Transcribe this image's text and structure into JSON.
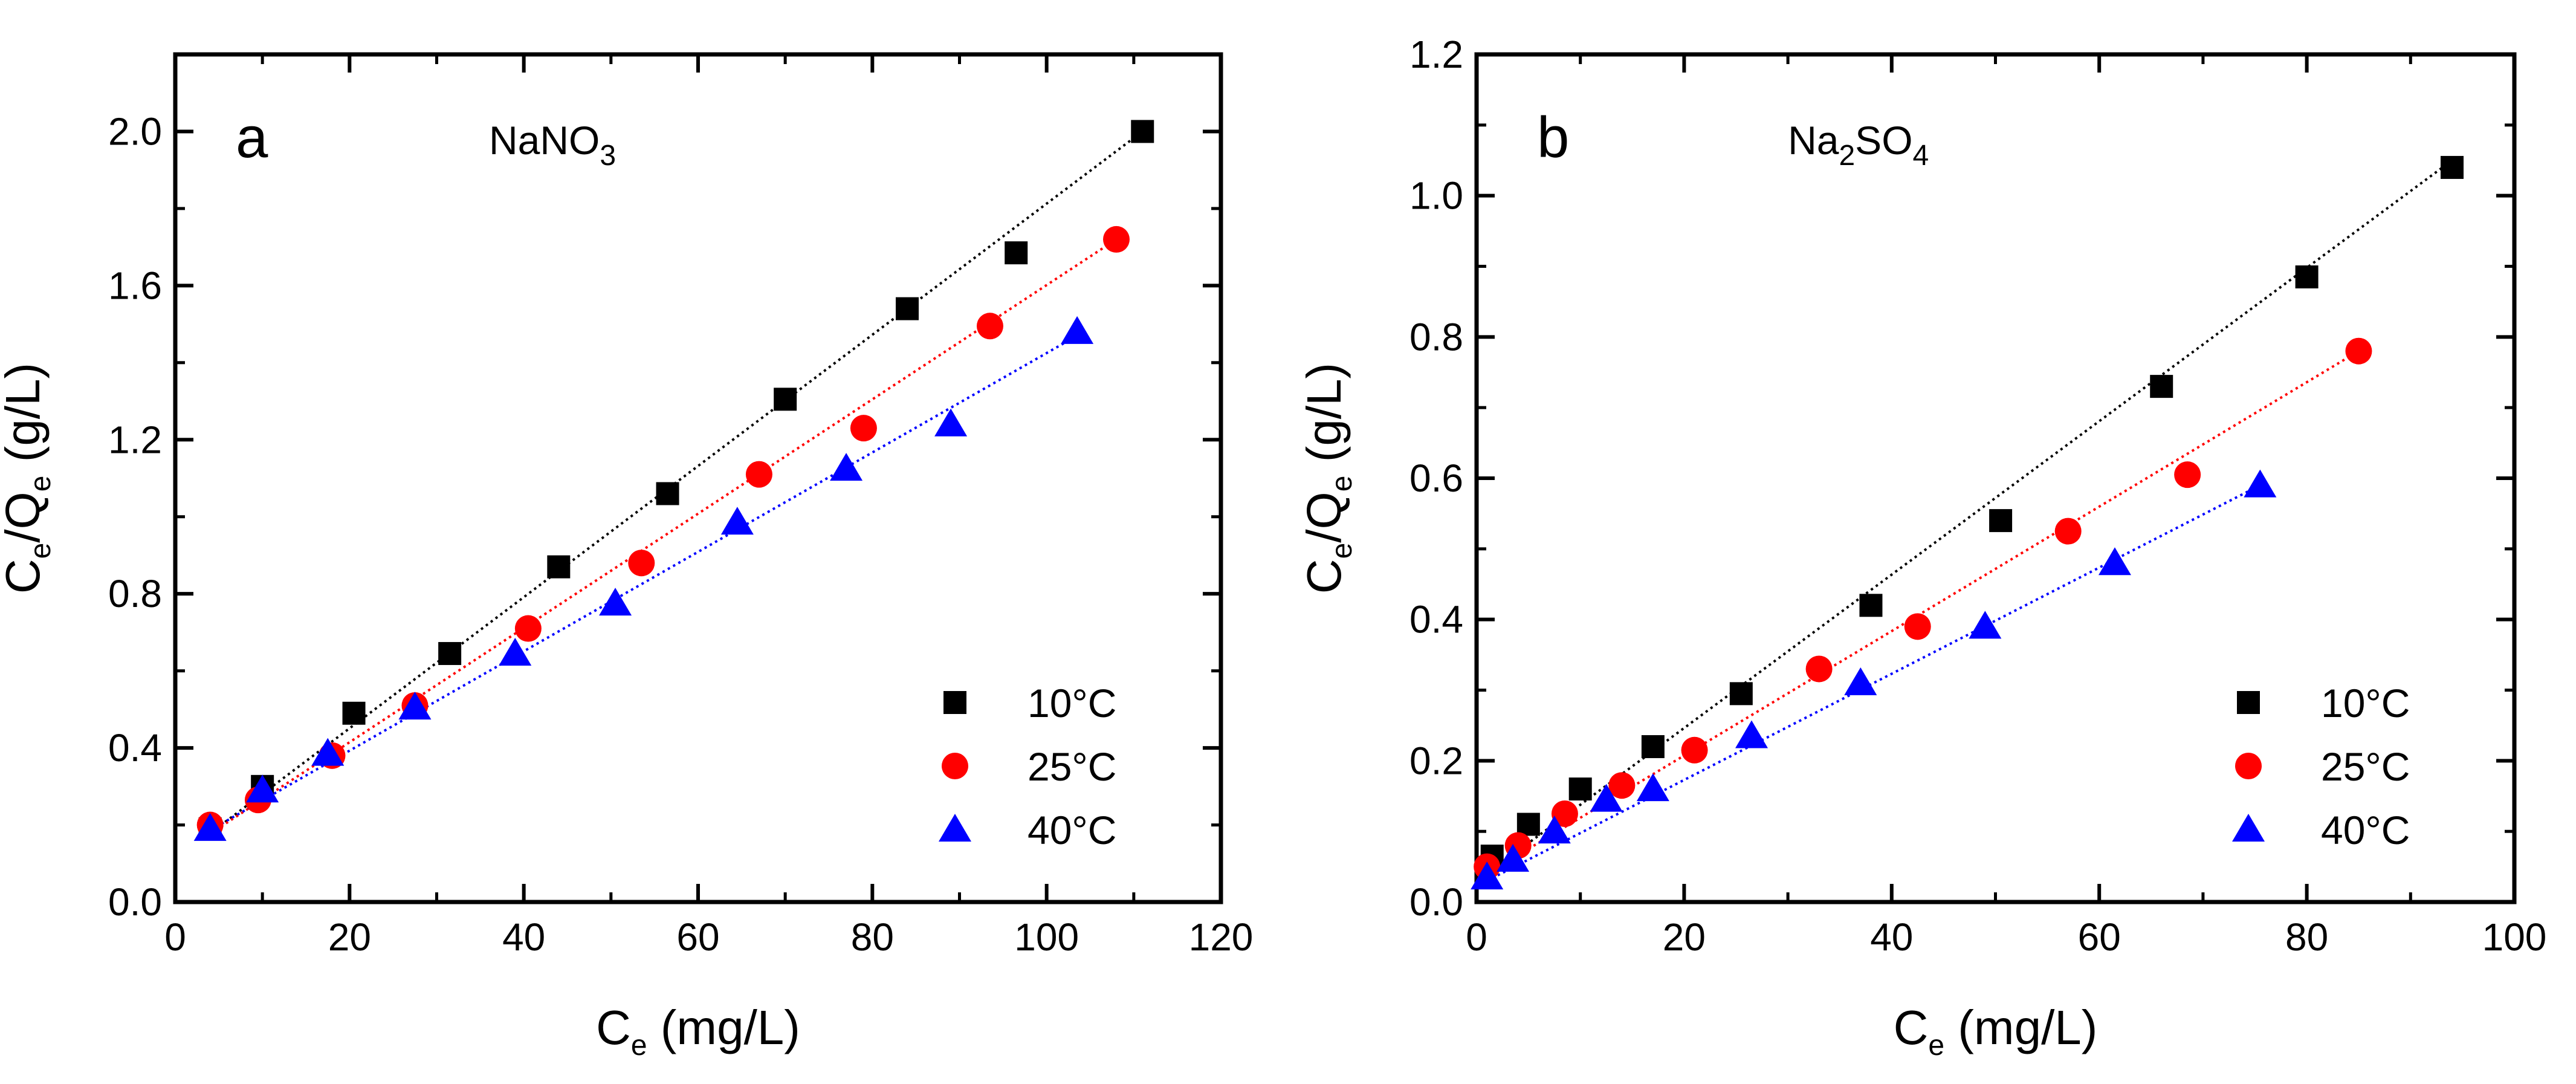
{
  "chart_data": [
    {
      "type": "scatter",
      "panel_label": "a",
      "title_parts": [
        "NaNO",
        "3",
        ""
      ],
      "xlabel_parts": [
        "C",
        "e",
        " (mg/L)"
      ],
      "ylabel_parts": [
        "C",
        "e",
        "/Q",
        "e",
        " (g/L)"
      ],
      "xlim": [
        0,
        120
      ],
      "ylim": [
        0,
        2.2
      ],
      "xticks": [
        0,
        20,
        40,
        60,
        80,
        100,
        120
      ],
      "yticks": [
        0.0,
        0.4,
        0.8,
        1.2,
        1.6,
        2.0
      ],
      "xtick_labels": [
        "0",
        "20",
        "40",
        "60",
        "80",
        "100",
        "120"
      ],
      "ytick_labels": [
        "0.0",
        "0.4",
        "0.8",
        "1.2",
        "1.6",
        "2.0"
      ],
      "legend_position": "bottom-right",
      "series": [
        {
          "name": "10°C",
          "marker": "square",
          "color": "#000000",
          "fit_color": "#000000",
          "x": [
            4.0,
            10.0,
            20.5,
            31.5,
            44.0,
            56.5,
            70.0,
            84.0,
            96.5,
            111.0
          ],
          "y": [
            0.19,
            0.3,
            0.49,
            0.645,
            0.87,
            1.06,
            1.305,
            1.54,
            1.685,
            2.0
          ],
          "fit": [
            [
              3.5,
              0.17
            ],
            [
              111.0,
              2.0
            ]
          ]
        },
        {
          "name": "25°C",
          "marker": "circle",
          "color": "#ff0000",
          "fit_color": "#ff0000",
          "x": [
            4.0,
            9.5,
            18.0,
            27.5,
            40.5,
            53.5,
            67.0,
            79.0,
            93.5,
            108.0
          ],
          "y": [
            0.2,
            0.265,
            0.38,
            0.51,
            0.71,
            0.88,
            1.11,
            1.23,
            1.495,
            1.72
          ],
          "fit": [
            [
              3.5,
              0.17
            ],
            [
              108.0,
              1.72
            ]
          ]
        },
        {
          "name": "40°C",
          "marker": "triangle",
          "color": "#0000ff",
          "fit_color": "#0000ff",
          "x": [
            4.0,
            10.0,
            17.5,
            27.5,
            39.0,
            50.5,
            64.5,
            77.0,
            89.0,
            103.5
          ],
          "y": [
            0.19,
            0.29,
            0.385,
            0.505,
            0.645,
            0.775,
            0.985,
            1.125,
            1.24,
            1.48
          ],
          "fit": [
            [
              3.5,
              0.18
            ],
            [
              103.5,
              1.47
            ]
          ]
        }
      ]
    },
    {
      "type": "scatter",
      "panel_label": "b",
      "title_parts": [
        "Na",
        "2",
        "SO",
        "4"
      ],
      "xlabel_parts": [
        "C",
        "e",
        " (mg/L)"
      ],
      "ylabel_parts": [
        "C",
        "e",
        "/Q",
        "e",
        " (g/L)"
      ],
      "xlim": [
        0,
        100
      ],
      "ylim": [
        0,
        1.2
      ],
      "xticks": [
        0,
        20,
        40,
        60,
        80,
        100
      ],
      "yticks": [
        0.0,
        0.2,
        0.4,
        0.6,
        0.8,
        1.0,
        1.2
      ],
      "xtick_labels": [
        "0",
        "20",
        "40",
        "60",
        "80",
        "100"
      ],
      "ytick_labels": [
        "0.0",
        "0.2",
        "0.4",
        "0.6",
        "0.8",
        "1.0",
        "1.2"
      ],
      "legend_position": "bottom-right",
      "series": [
        {
          "name": "10°C",
          "marker": "square",
          "color": "#000000",
          "fit_color": "#000000",
          "x": [
            1.5,
            5.0,
            10.0,
            17.0,
            25.5,
            38.0,
            50.5,
            66.0,
            80.0,
            94.0
          ],
          "y": [
            0.065,
            0.11,
            0.16,
            0.22,
            0.295,
            0.42,
            0.54,
            0.73,
            0.885,
            1.04
          ],
          "fit": [
            [
              1.0,
              0.04
            ],
            [
              94.0,
              1.05
            ]
          ]
        },
        {
          "name": "25°C",
          "marker": "circle",
          "color": "#ff0000",
          "fit_color": "#ff0000",
          "x": [
            1.0,
            4.0,
            8.5,
            14.0,
            21.0,
            33.0,
            42.5,
            57.0,
            68.5,
            85.0
          ],
          "y": [
            0.05,
            0.08,
            0.125,
            0.165,
            0.215,
            0.33,
            0.39,
            0.525,
            0.605,
            0.78
          ],
          "fit": [
            [
              1.0,
              0.04
            ],
            [
              85.0,
              0.78
            ]
          ]
        },
        {
          "name": "40°C",
          "marker": "triangle",
          "color": "#0000ff",
          "fit_color": "#0000ff",
          "x": [
            1.0,
            3.5,
            7.5,
            12.5,
            17.0,
            26.5,
            37.0,
            49.0,
            61.5,
            75.5
          ],
          "y": [
            0.035,
            0.06,
            0.1,
            0.145,
            0.16,
            0.235,
            0.31,
            0.39,
            0.48,
            0.59
          ],
          "fit": [
            [
              1.0,
              0.03
            ],
            [
              75.5,
              0.59
            ]
          ]
        }
      ]
    }
  ]
}
